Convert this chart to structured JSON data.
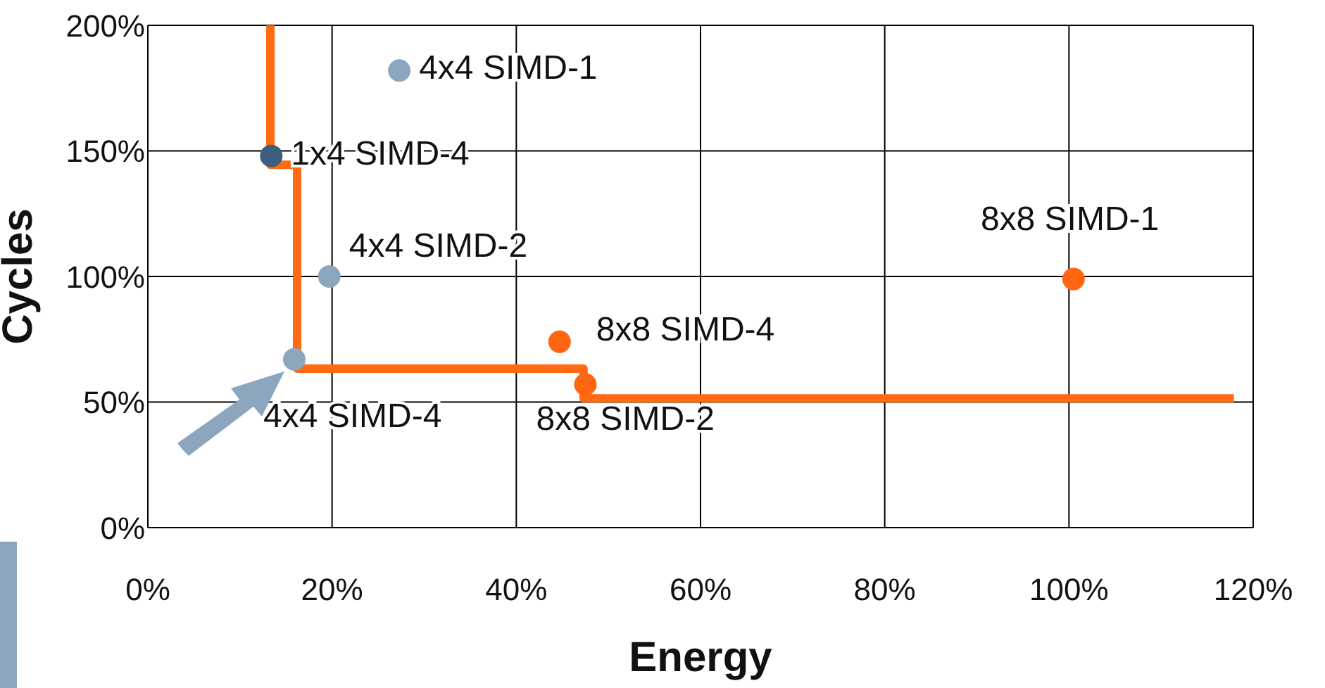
{
  "chart_data": {
    "type": "scatter",
    "xlabel": "Energy",
    "ylabel": "Cycles",
    "xlim": [
      0,
      120
    ],
    "xticks": [
      {
        "value": 0,
        "label": "0%"
      },
      {
        "value": 20,
        "label": "20%"
      },
      {
        "value": 40,
        "label": "40%"
      },
      {
        "value": 60,
        "label": "60%"
      },
      {
        "value": 80,
        "label": "80%"
      },
      {
        "value": 100,
        "label": "100%"
      },
      {
        "value": 120,
        "label": "120%"
      }
    ],
    "ylim": [
      0,
      200
    ],
    "yticks": [
      {
        "value": 0,
        "label": "0%"
      },
      {
        "value": 50,
        "label": "50%"
      },
      {
        "value": 100,
        "label": "100%"
      },
      {
        "value": 150,
        "label": "150%"
      },
      {
        "value": 200,
        "label": "200%"
      }
    ],
    "grid": true,
    "legend": false,
    "marker": "circle",
    "series": [
      {
        "type": "line",
        "color": "#ff6a13",
        "x": [
          13.3,
          13.3,
          16.2,
          16.2,
          47.3,
          47.3,
          117.9
        ],
        "values": [
          200,
          144.5,
          144.5,
          63.3,
          63.3,
          51.5,
          51.5
        ],
        "marker": "none"
      },
      {
        "name": "4x4 SIMD-1",
        "color": "#8ba6bd",
        "x": [
          27.3
        ],
        "values": [
          182
        ]
      },
      {
        "name": "1x4 SIMD-4",
        "color": "#3d5f7e",
        "x": [
          13.4
        ],
        "values": [
          148
        ]
      },
      {
        "name": "4x4 SIMD-2",
        "color": "#8ba6bd",
        "x": [
          19.7
        ],
        "values": [
          100
        ]
      },
      {
        "name": "4x4 SIMD-4",
        "color": "#8ba6bd",
        "x": [
          15.9
        ],
        "values": [
          67
        ]
      },
      {
        "name": "8x8 SIMD-4",
        "color": "#ff6611",
        "x": [
          44.7
        ],
        "values": [
          74
        ]
      },
      {
        "name": "8x8 SIMD-2",
        "color": "#ff6611",
        "x": [
          47.5
        ],
        "values": [
          57
        ]
      },
      {
        "name": "8x8 SIMD-1",
        "color": "#ff6611",
        "x": [
          100.5
        ],
        "values": [
          99
        ]
      }
    ]
  }
}
